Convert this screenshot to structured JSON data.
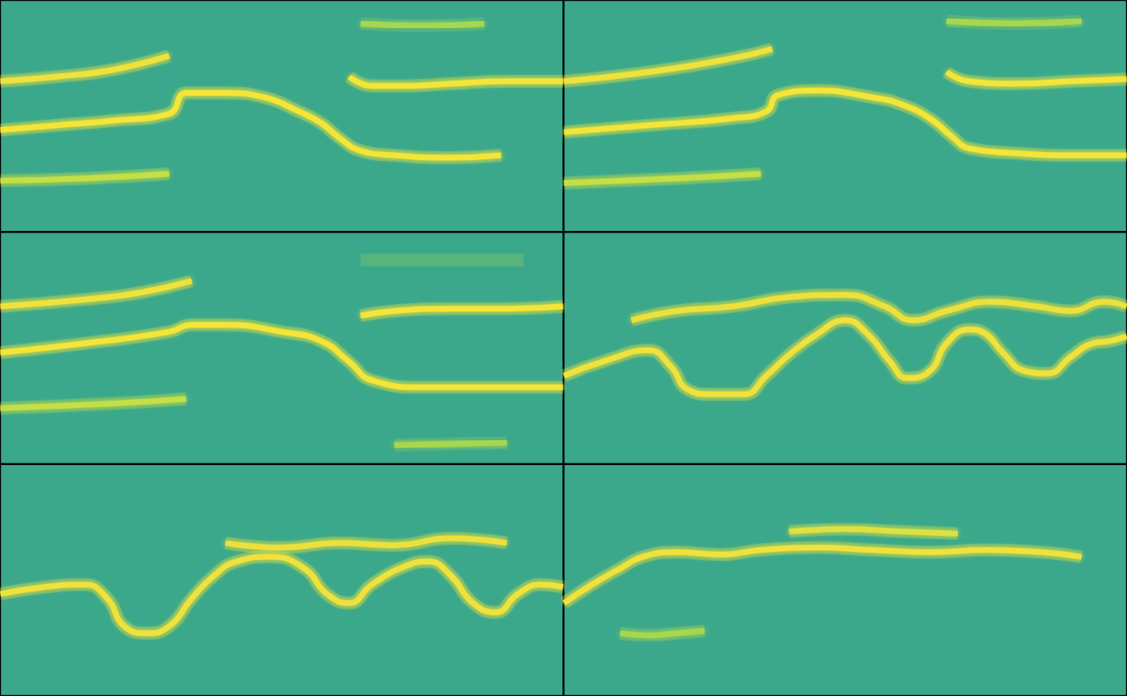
{
  "chart_data": [
    {
      "type": "line",
      "xlim": [
        0,
        100
      ],
      "ylim": [
        0,
        100
      ],
      "tick_labels": false,
      "grid": false,
      "series": [
        {
          "color": "#f2e33a",
          "x": [
            0,
            10,
            20,
            30
          ],
          "values": [
            65,
            67,
            70,
            76
          ]
        },
        {
          "color": "#f7e637",
          "x": [
            0,
            10,
            20,
            30,
            33,
            40,
            47,
            53,
            57,
            60,
            64,
            70,
            80,
            89
          ],
          "values": [
            44,
            46,
            48,
            51,
            60,
            60,
            58,
            52,
            47,
            41,
            35,
            33,
            32,
            33
          ]
        },
        {
          "color": "#c6df44",
          "x": [
            0,
            15,
            30
          ],
          "values": [
            22,
            23,
            25
          ]
        },
        {
          "color": "#f7e637",
          "x": [
            62,
            66,
            72,
            80,
            90,
            100
          ],
          "values": [
            67,
            63,
            63,
            64,
            65,
            65
          ]
        },
        {
          "color": "#a9d84e",
          "x": [
            64,
            75,
            86
          ],
          "values": [
            90,
            89,
            90
          ]
        }
      ]
    },
    {
      "type": "line",
      "xlim": [
        0,
        100
      ],
      "ylim": [
        0,
        100
      ],
      "tick_labels": false,
      "grid": false,
      "series": [
        {
          "color": "#f2e33a",
          "x": [
            0,
            15,
            30,
            37
          ],
          "values": [
            65,
            69,
            75,
            79
          ]
        },
        {
          "color": "#f7e637",
          "x": [
            0,
            15,
            30,
            36,
            38,
            45,
            55,
            60,
            65,
            69,
            72,
            80,
            90,
            100
          ],
          "values": [
            43,
            46,
            49,
            52,
            59,
            61,
            58,
            55,
            49,
            41,
            36,
            34,
            33,
            33
          ]
        },
        {
          "color": "#c6df44",
          "x": [
            0,
            20,
            35
          ],
          "values": [
            21,
            23,
            25
          ]
        },
        {
          "color": "#f7e637",
          "x": [
            68,
            72,
            80,
            90,
            100
          ],
          "values": [
            69,
            65,
            64,
            65,
            66
          ]
        },
        {
          "color": "#a9d84e",
          "x": [
            68,
            80,
            92
          ],
          "values": [
            91,
            90,
            91
          ]
        }
      ]
    },
    {
      "type": "line",
      "xlim": [
        0,
        100
      ],
      "ylim": [
        0,
        100
      ],
      "tick_labels": false,
      "grid": false,
      "series": [
        {
          "color": "#f2e33a",
          "x": [
            0,
            15,
            25,
            34
          ],
          "values": [
            68,
            71,
            74,
            79
          ]
        },
        {
          "color": "#f7e637",
          "x": [
            0,
            15,
            30,
            34,
            40,
            50,
            57,
            62,
            66,
            75,
            88,
            100
          ],
          "values": [
            48,
            52,
            57,
            60,
            60,
            57,
            53,
            44,
            36,
            33,
            33,
            33
          ]
        },
        {
          "color": "#c6df44",
          "x": [
            0,
            20,
            33
          ],
          "values": [
            24,
            26,
            28
          ]
        },
        {
          "color": "#f7e637",
          "x": [
            64,
            70,
            80,
            90,
            100
          ],
          "values": [
            64,
            66,
            67,
            67,
            68
          ]
        },
        {
          "color": "#a9d84e",
          "x": [
            64,
            80,
            93
          ],
          "values": [
            88,
            88,
            88
          ]
        },
        {
          "color": "#a9d84e",
          "x": [
            70,
            90
          ],
          "values": [
            8,
            9
          ]
        }
      ]
    },
    {
      "type": "line",
      "xlim": [
        0,
        100
      ],
      "ylim": [
        0,
        100
      ],
      "tick_labels": false,
      "grid": false,
      "series": [
        {
          "color": "#f2e33a",
          "x": [
            0,
            8,
            15,
            19,
            22,
            26,
            32,
            36,
            40,
            45,
            50,
            54,
            58,
            61,
            65,
            68,
            72,
            75,
            78,
            82,
            86,
            90,
            94,
            97,
            100
          ],
          "values": [
            38,
            45,
            49,
            42,
            32,
            30,
            30,
            38,
            47,
            56,
            62,
            56,
            44,
            37,
            40,
            52,
            58,
            56,
            48,
            40,
            39,
            46,
            52,
            53,
            55
          ]
        },
        {
          "color": "#eee23b",
          "x": [
            12,
            20,
            30,
            40,
            50,
            57,
            62,
            68,
            76,
            84,
            90,
            96,
            100
          ],
          "values": [
            62,
            66,
            68,
            72,
            73,
            68,
            62,
            66,
            70,
            68,
            66,
            70,
            68
          ]
        }
      ]
    },
    {
      "type": "line",
      "xlim": [
        0,
        100
      ],
      "ylim": [
        0,
        100
      ],
      "tick_labels": false,
      "grid": false,
      "series": [
        {
          "color": "#f2e33a",
          "x": [
            0,
            8,
            15,
            19,
            22,
            26,
            30,
            34,
            38,
            42,
            48,
            54,
            58,
            62,
            66,
            72,
            76,
            80,
            84,
            88,
            92,
            96,
            100
          ],
          "values": [
            44,
            47,
            48,
            42,
            30,
            27,
            30,
            42,
            52,
            58,
            60,
            55,
            44,
            40,
            48,
            56,
            58,
            52,
            40,
            36,
            44,
            48,
            47
          ]
        },
        {
          "color": "#eee23b",
          "x": [
            40,
            50,
            60,
            70,
            80,
            90
          ],
          "values": [
            66,
            64,
            66,
            65,
            68,
            66
          ]
        }
      ]
    },
    {
      "type": "line",
      "xlim": [
        0,
        100
      ],
      "ylim": [
        0,
        100
      ],
      "tick_labels": false,
      "grid": false,
      "series": [
        {
          "color": "#f2e33a",
          "x": [
            0,
            5,
            10,
            14,
            20,
            28,
            35,
            45,
            55,
            65,
            75,
            85,
            92
          ],
          "values": [
            40,
            48,
            55,
            60,
            62,
            61,
            63,
            64,
            63,
            62,
            63,
            62,
            60
          ]
        },
        {
          "color": "#dfe23f",
          "x": [
            40,
            50,
            60,
            70
          ],
          "values": [
            71,
            72,
            71,
            70
          ]
        },
        {
          "color": "#a9d84e",
          "x": [
            10,
            15,
            20,
            25
          ],
          "values": [
            27,
            26,
            27,
            28
          ]
        }
      ]
    }
  ]
}
